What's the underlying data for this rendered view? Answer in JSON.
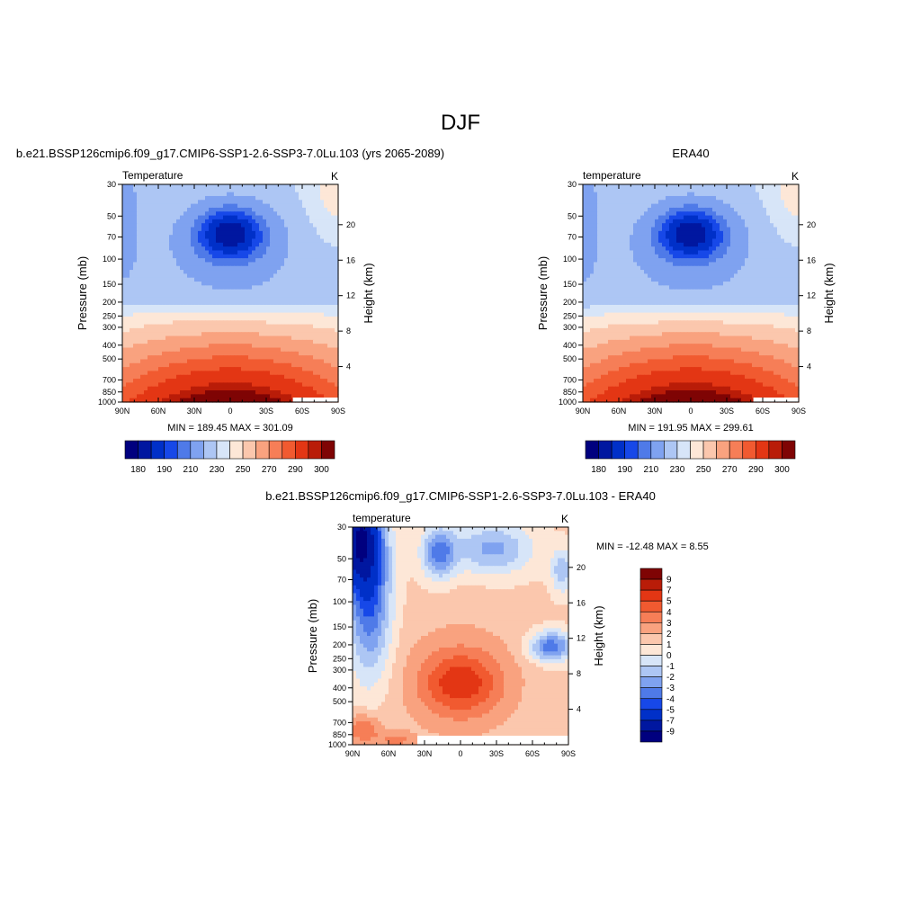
{
  "page_title": "DJF",
  "colors": {
    "full": [
      "#00007f",
      "#0017a0",
      "#0030c8",
      "#1748e8",
      "#4f7ae8",
      "#7fa2f0",
      "#adc6f4",
      "#d7e5f8",
      "#fde7d7",
      "#fbc7ad",
      "#f9a27f",
      "#f67e57",
      "#f15a30",
      "#e33614",
      "#b91c08",
      "#7f0404"
    ],
    "diff": [
      "#00007f",
      "#0017a0",
      "#0030c8",
      "#1748e8",
      "#4f7ae8",
      "#7fa2f0",
      "#adc6f4",
      "#d7e5f8",
      "#fde7d7",
      "#fbc7ad",
      "#f9a27f",
      "#f67e57",
      "#f15a30",
      "#e33614",
      "#b91c08",
      "#7f0404"
    ]
  },
  "chart_data": [
    {
      "type": "heatmap",
      "panel_title": "b.e21.BSSP126cmip6.f09_g17.CMIP6-SSP1-2.6-SSP3-7.0Lu.103 (yrs 2065-2089)",
      "variable": "Temperature",
      "units": "K",
      "xlabel": "",
      "ylabel": "Pressure (mb)",
      "ylabel_right": "Height (km)",
      "x_ticks": [
        "90N",
        "60N",
        "30N",
        "0",
        "30S",
        "60S",
        "90S"
      ],
      "y_ticks": [
        "30",
        "50",
        "70",
        "100",
        "150",
        "200",
        "250",
        "300",
        "400",
        "500",
        "700",
        "850",
        "1000"
      ],
      "y_ticks_right": [
        "20",
        "16",
        "12",
        "8",
        "4"
      ],
      "ylim": [
        1000,
        30
      ],
      "log_scale_y": true,
      "stats": "MIN = 189.45  MAX = 301.09",
      "min": 189.45,
      "max": 301.09,
      "colorbar_labels": [
        "180",
        "190",
        "210",
        "230",
        "250",
        "270",
        "290",
        "300"
      ]
    },
    {
      "type": "heatmap",
      "panel_title": "ERA40",
      "variable": "temperature",
      "units": "K",
      "xlabel": "",
      "ylabel": "Pressure (mb)",
      "ylabel_right": "Height (km)",
      "x_ticks": [
        "90N",
        "60N",
        "30N",
        "0",
        "30S",
        "60S",
        "90S"
      ],
      "y_ticks": [
        "30",
        "50",
        "70",
        "100",
        "150",
        "200",
        "250",
        "300",
        "400",
        "500",
        "700",
        "850",
        "1000"
      ],
      "y_ticks_right": [
        "20",
        "16",
        "12",
        "8",
        "4"
      ],
      "ylim": [
        1000,
        30
      ],
      "log_scale_y": true,
      "stats": "MIN = 191.95  MAX = 299.61",
      "min": 191.95,
      "max": 299.61,
      "colorbar_labels": [
        "180",
        "190",
        "210",
        "230",
        "250",
        "270",
        "290",
        "300"
      ]
    },
    {
      "type": "heatmap",
      "panel_title": "b.e21.BSSP126cmip6.f09_g17.CMIP6-SSP1-2.6-SSP3-7.0Lu.103 - ERA40",
      "variable": "temperature",
      "units": "K",
      "xlabel": "",
      "ylabel": "Pressure (mb)",
      "ylabel_right": "Height (km)",
      "x_ticks": [
        "90N",
        "60N",
        "30N",
        "0",
        "30S",
        "60S",
        "90S"
      ],
      "y_ticks": [
        "30",
        "50",
        "70",
        "100",
        "150",
        "200",
        "250",
        "300",
        "400",
        "500",
        "700",
        "850",
        "1000"
      ],
      "y_ticks_right": [
        "20",
        "16",
        "12",
        "8",
        "4"
      ],
      "ylim": [
        1000,
        30
      ],
      "log_scale_y": true,
      "stats": "MIN = -12.48  MAX =   8.55",
      "min": -12.48,
      "max": 8.55,
      "colorbar_labels": [
        "9",
        "7",
        "5",
        "4",
        "3",
        "2",
        "1",
        "0",
        "-1",
        "-2",
        "-3",
        "-4",
        "-5",
        "-7",
        "-9"
      ]
    }
  ]
}
